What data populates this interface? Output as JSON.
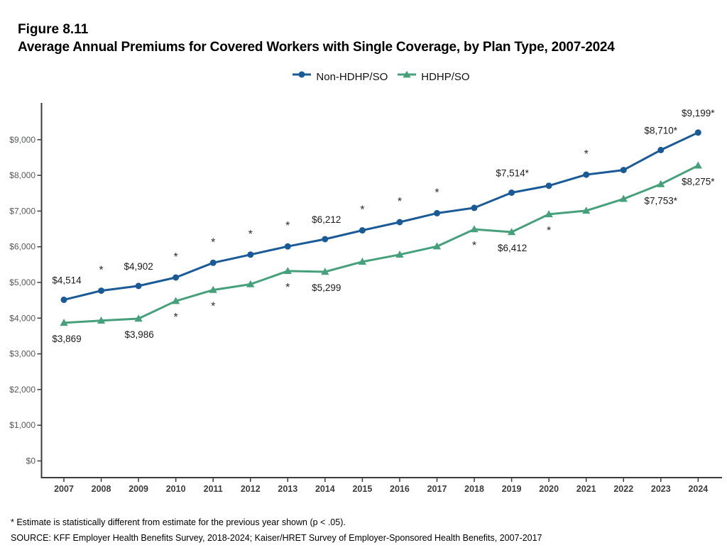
{
  "header": {
    "figure_label": "Figure 8.11",
    "title": "Average Annual Premiums for Covered Workers with Single Coverage, by Plan Type, 2007-2024"
  },
  "footnotes": {
    "significance": "* Estimate is statistically different from estimate for the previous year shown (p < .05).",
    "source": "SOURCE: KFF Employer Health Benefits Survey, 2018-2024; Kaiser/HRET Survey of Employer-Sponsored Health Benefits, 2007-2017"
  },
  "colors": {
    "non_hdhp_line": "#1a5a96",
    "hdhp_line": "#46a07c",
    "axis": "#3c3c3c",
    "tick_label": "#58595b",
    "year_label": "#3c3c3c",
    "data_label": "#1a1a1a",
    "asterisk": "#2b2b2b"
  },
  "chart_data": {
    "type": "line",
    "title": "Average Annual Premiums for Covered Workers with Single Coverage, by Plan Type, 2007-2024",
    "xlabel": "",
    "ylabel": "",
    "grid": false,
    "legend_position": "top-center",
    "x": [
      2007,
      2008,
      2009,
      2010,
      2011,
      2012,
      2013,
      2014,
      2015,
      2016,
      2017,
      2018,
      2019,
      2020,
      2021,
      2022,
      2023,
      2024
    ],
    "ylim": [
      0,
      9400
    ],
    "yticks": [
      {
        "value": 0,
        "label": "$0"
      },
      {
        "value": 1000,
        "label": "$1,000"
      },
      {
        "value": 2000,
        "label": "$2,000"
      },
      {
        "value": 3000,
        "label": "$3,000"
      },
      {
        "value": 4000,
        "label": "$4,000"
      },
      {
        "value": 5000,
        "label": "$5,000"
      },
      {
        "value": 6000,
        "label": "$6,000"
      },
      {
        "value": 7000,
        "label": "$7,000"
      },
      {
        "value": 8000,
        "label": "$8,000"
      },
      {
        "value": 9000,
        "label": "$9,000"
      }
    ],
    "series": [
      {
        "name": "Non-HDHP/SO",
        "marker": "circle",
        "color": "#1a5a96",
        "values": [
          4514,
          4770,
          4902,
          5140,
          5550,
          5780,
          6010,
          6212,
          6460,
          6690,
          6940,
          7090,
          7514,
          7710,
          8020,
          8150,
          8710,
          9199
        ],
        "point_labels": [
          {
            "year": 2007,
            "text": "$4,514",
            "dx": 4,
            "dy": -23
          },
          {
            "year": 2009,
            "text": "$4,902",
            "dx": 0,
            "dy": -23
          },
          {
            "year": 2014,
            "text": "$6,212",
            "dx": 2,
            "dy": -23
          },
          {
            "year": 2019,
            "text": "$7,514*",
            "dx": 1,
            "dy": -23
          },
          {
            "year": 2023,
            "text": "$8,710*",
            "dx": 0,
            "dy": -23
          },
          {
            "year": 2024,
            "text": "$9,199*",
            "dx": 0,
            "dy": -23
          }
        ],
        "asterisk_years": [
          2008,
          2010,
          2011,
          2012,
          2013,
          2015,
          2016,
          2017,
          2021
        ],
        "asterisk_position": "above"
      },
      {
        "name": "HDHP/SO",
        "marker": "triangle",
        "color": "#46a07c",
        "values": [
          3869,
          3930,
          3986,
          4480,
          4790,
          4950,
          5320,
          5299,
          5580,
          5780,
          6010,
          6490,
          6412,
          6910,
          7010,
          7340,
          7753,
          8275
        ],
        "point_labels": [
          {
            "year": 2007,
            "text": "$3,869",
            "dx": 4,
            "dy": 27
          },
          {
            "year": 2009,
            "text": "$3,986",
            "dx": 1,
            "dy": 27
          },
          {
            "year": 2014,
            "text": "$5,299",
            "dx": 2,
            "dy": 27
          },
          {
            "year": 2019,
            "text": "$6,412",
            "dx": 1,
            "dy": 27
          },
          {
            "year": 2023,
            "text": "$7,753*",
            "dx": 0,
            "dy": 28
          },
          {
            "year": 2024,
            "text": "$8,275*",
            "dx": 0,
            "dy": 27
          }
        ],
        "asterisk_years": [
          2010,
          2011,
          2013,
          2018,
          2020
        ],
        "asterisk_position": "below"
      }
    ]
  }
}
